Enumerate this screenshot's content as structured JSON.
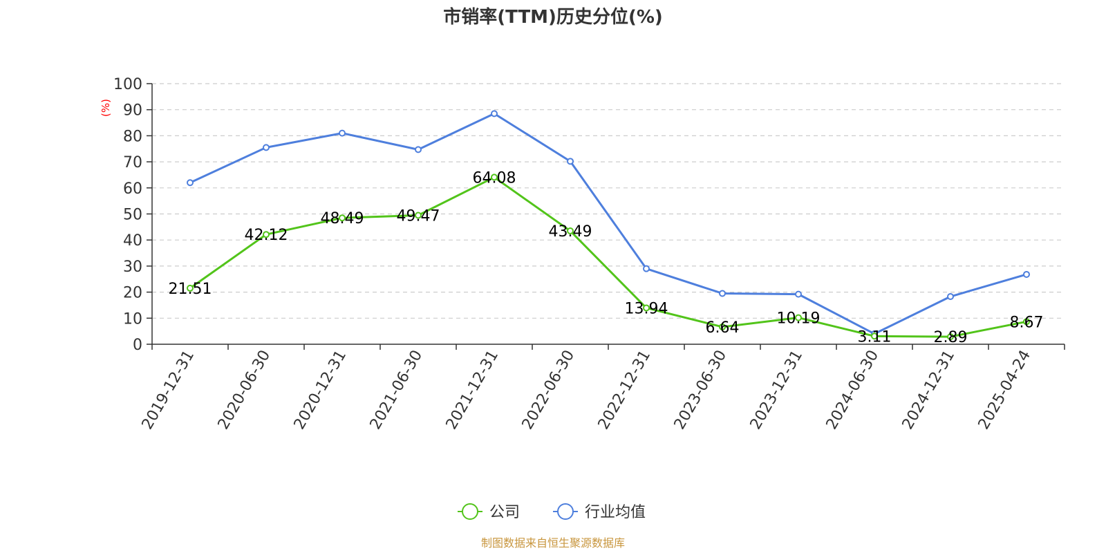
{
  "chart_data": {
    "type": "line",
    "title": "市销率(TTM)历史分位(%)",
    "ylabel": "(%)",
    "xlabel": "",
    "ylim": [
      0,
      100
    ],
    "yticks": [
      0,
      10,
      20,
      30,
      40,
      50,
      60,
      70,
      80,
      90,
      100
    ],
    "grid": true,
    "legend_position": "bottom-center",
    "categories": [
      "2019-12-31",
      "2020-06-30",
      "2020-12-31",
      "2021-06-30",
      "2021-12-31",
      "2022-06-30",
      "2022-12-31",
      "2023-06-30",
      "2023-12-31",
      "2024-06-30",
      "2024-12-31",
      "2025-04-24"
    ],
    "series": [
      {
        "name": "公司",
        "color": "#52c41a",
        "show_labels": true,
        "values": [
          21.51,
          42.12,
          48.49,
          49.47,
          64.08,
          43.49,
          13.94,
          6.64,
          10.19,
          3.11,
          2.89,
          8.67
        ],
        "labels": [
          "21.51",
          "42.12",
          "48.49",
          "49.47",
          "64.08",
          "43.49",
          "13.94",
          "6.64",
          "10.19",
          "3.11",
          "2.89",
          "8.67"
        ]
      },
      {
        "name": "行业均值",
        "color": "#4e7fdd",
        "show_labels": false,
        "values": [
          62.0,
          75.5,
          81.0,
          74.7,
          88.5,
          70.2,
          29.0,
          19.5,
          19.2,
          4.0,
          18.3,
          26.8
        ]
      }
    ],
    "source": "制图数据来自恒生聚源数据库",
    "colors": {
      "ylabel": "#ff0000",
      "source": "#c8963e",
      "grid": "#cccccc",
      "axis": "#333333"
    }
  }
}
